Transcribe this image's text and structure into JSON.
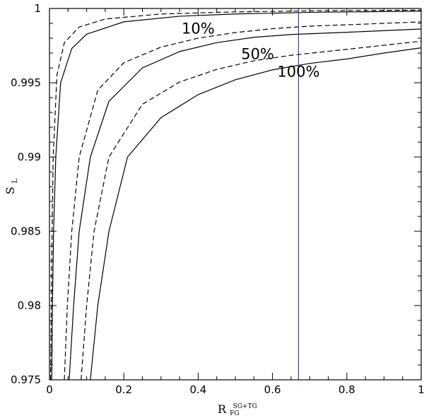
{
  "chart_data": {
    "type": "line",
    "title": "",
    "xlabel": "R",
    "xlabel_superscript": "SG+TG",
    "xlabel_subscript": "FG",
    "ylabel": "S",
    "ylabel_subscript": "L",
    "xlim": [
      0,
      1
    ],
    "ylim": [
      0.975,
      1
    ],
    "xticks": [
      "0",
      "0.2",
      "0.4",
      "0.6",
      "0.8",
      "1"
    ],
    "yticks": [
      "0.975",
      "0.98",
      "0.985",
      "0.99",
      "0.995",
      "1"
    ],
    "grid": false,
    "legend": "none",
    "vertical_line": {
      "x": 0.67,
      "color": "#2b2bb0"
    },
    "annotations": [
      {
        "text": "10%",
        "x": 0.4,
        "y": 0.9983
      },
      {
        "text": "50%",
        "x": 0.56,
        "y": 0.9966
      },
      {
        "text": "100%",
        "x": 0.67,
        "y": 0.9954
      }
    ],
    "series": [
      {
        "style": "dashed",
        "color": "#000000",
        "points": [
          [
            0.003,
            0.975
          ],
          [
            0.005,
            0.98
          ],
          [
            0.007,
            0.985
          ],
          [
            0.01,
            0.99
          ],
          [
            0.02,
            0.9955
          ],
          [
            0.04,
            0.9977
          ],
          [
            0.08,
            0.99875
          ],
          [
            0.15,
            0.99929
          ],
          [
            0.3,
            0.99963
          ],
          [
            0.5,
            0.99977
          ],
          [
            0.7,
            0.99984
          ],
          [
            1.0,
            0.99989
          ]
        ]
      },
      {
        "style": "solid",
        "color": "#000000",
        "points": [
          [
            0.006,
            0.975
          ],
          [
            0.008,
            0.98
          ],
          [
            0.011,
            0.985
          ],
          [
            0.017,
            0.99
          ],
          [
            0.03,
            0.995
          ],
          [
            0.06,
            0.9973
          ],
          [
            0.1,
            0.99827
          ],
          [
            0.2,
            0.9991
          ],
          [
            0.35,
            0.99948
          ],
          [
            0.5,
            0.99963
          ],
          [
            0.7,
            0.99974
          ],
          [
            1.0,
            0.99982
          ]
        ]
      },
      {
        "style": "dashed",
        "color": "#000000",
        "points": [
          [
            0.04,
            0.975
          ],
          [
            0.048,
            0.98
          ],
          [
            0.06,
            0.985
          ],
          [
            0.08,
            0.99
          ],
          [
            0.13,
            0.9945
          ],
          [
            0.2,
            0.99635
          ],
          [
            0.3,
            0.9974
          ],
          [
            0.4,
            0.998
          ],
          [
            0.5,
            0.99838
          ],
          [
            0.6,
            0.99864
          ],
          [
            0.7,
            0.99881
          ],
          [
            0.85,
            0.99895
          ],
          [
            1.0,
            0.9991
          ]
        ]
      },
      {
        "style": "solid",
        "color": "#000000",
        "points": [
          [
            0.053,
            0.975
          ],
          [
            0.065,
            0.98
          ],
          [
            0.08,
            0.985
          ],
          [
            0.11,
            0.99
          ],
          [
            0.16,
            0.99375
          ],
          [
            0.25,
            0.996
          ],
          [
            0.35,
            0.9971
          ],
          [
            0.45,
            0.9977
          ],
          [
            0.55,
            0.99806
          ],
          [
            0.65,
            0.99825
          ],
          [
            0.8,
            0.9984
          ],
          [
            1.0,
            0.99862
          ]
        ]
      },
      {
        "style": "dashed",
        "color": "#000000",
        "points": [
          [
            0.085,
            0.975
          ],
          [
            0.1,
            0.98
          ],
          [
            0.12,
            0.985
          ],
          [
            0.16,
            0.99
          ],
          [
            0.25,
            0.99355
          ],
          [
            0.35,
            0.99505
          ],
          [
            0.45,
            0.9959
          ],
          [
            0.55,
            0.99648
          ],
          [
            0.65,
            0.99685
          ],
          [
            0.8,
            0.99725
          ],
          [
            1.0,
            0.9978
          ]
        ]
      },
      {
        "style": "solid",
        "color": "#000000",
        "points": [
          [
            0.11,
            0.975
          ],
          [
            0.13,
            0.98
          ],
          [
            0.16,
            0.985
          ],
          [
            0.21,
            0.99
          ],
          [
            0.3,
            0.99265
          ],
          [
            0.4,
            0.9942
          ],
          [
            0.5,
            0.9952
          ],
          [
            0.6,
            0.99587
          ],
          [
            0.7,
            0.9963
          ],
          [
            0.8,
            0.9966
          ],
          [
            0.9,
            0.997
          ],
          [
            1.0,
            0.99735
          ]
        ]
      }
    ]
  }
}
